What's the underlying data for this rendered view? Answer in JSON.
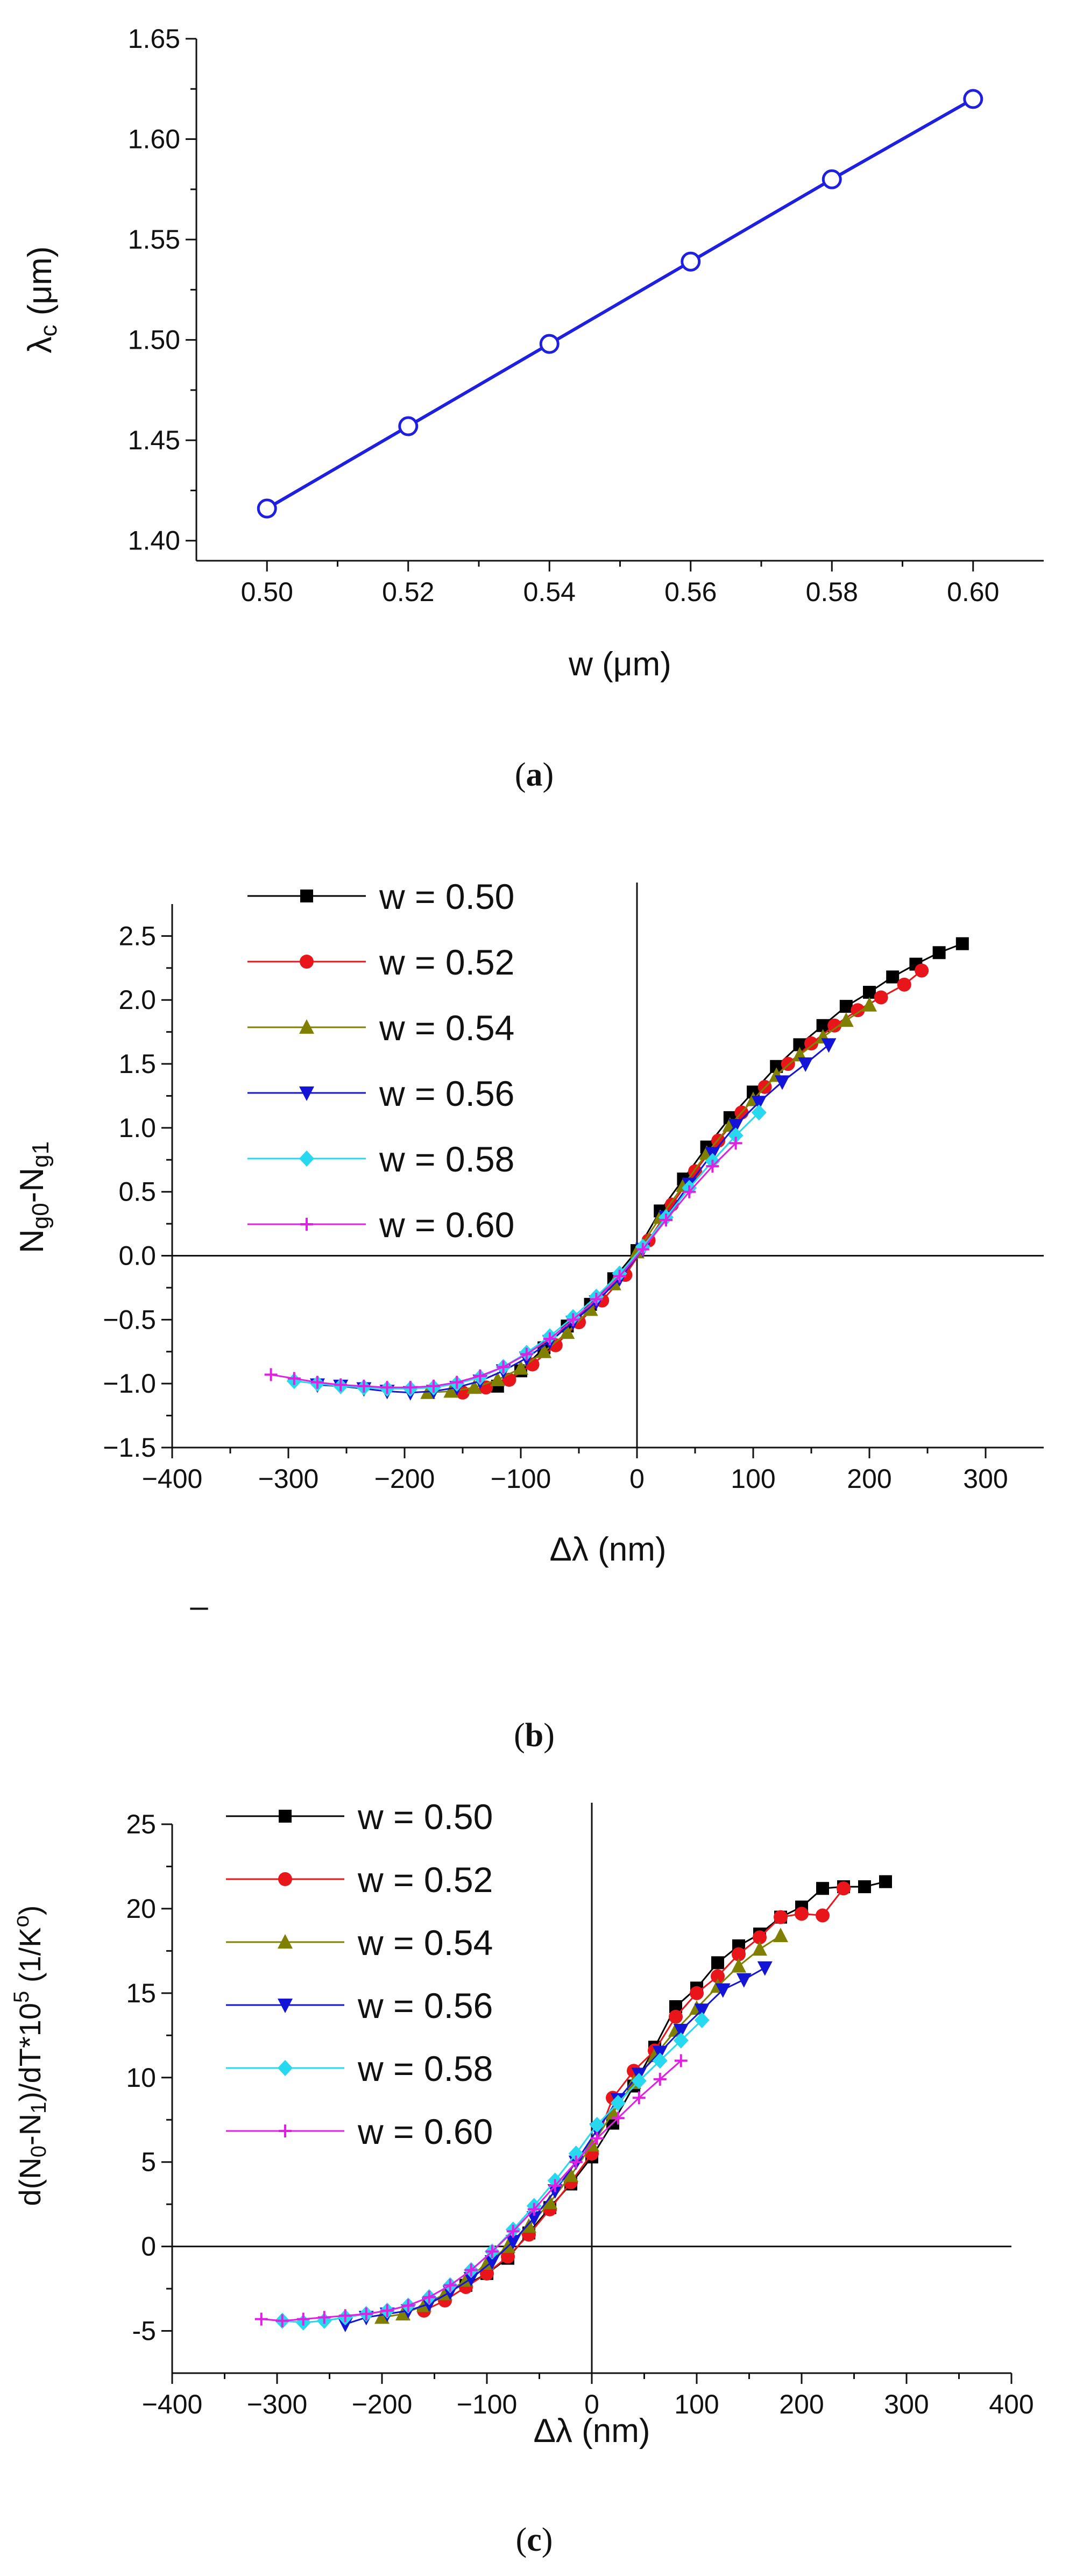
{
  "chart_data": [
    {
      "type": "line",
      "panel": "a",
      "caption": "(a)",
      "xlabel": "w (μm)",
      "ylabel": "λc (μm)",
      "xlim": [
        0.49,
        0.61
      ],
      "ylim": [
        1.39,
        1.65
      ],
      "xticks": [
        0.5,
        0.52,
        0.54,
        0.56,
        0.58,
        0.6
      ],
      "xtick_labels": [
        "0.50",
        "0.52",
        "0.54",
        "0.56",
        "0.58",
        "0.60"
      ],
      "yticks": [
        1.4,
        1.45,
        1.5,
        1.55,
        1.6,
        1.65
      ],
      "ytick_labels": [
        "1.40",
        "1.45",
        "1.50",
        "1.55",
        "1.60",
        "1.65"
      ],
      "series": [
        {
          "name": "lambda_c",
          "color": "#1f1fe0",
          "marker": "open-circle",
          "x": [
            0.5,
            0.52,
            0.54,
            0.56,
            0.58,
            0.6
          ],
          "y": [
            1.416,
            1.457,
            1.498,
            1.539,
            1.58,
            1.62
          ]
        }
      ]
    },
    {
      "type": "line",
      "panel": "b",
      "caption": "(b)",
      "xlabel": "Δλ (nm)",
      "ylabel": "Ng0-Ng1",
      "xlim": [
        -400,
        350
      ],
      "ylim": [
        -1.5,
        2.75
      ],
      "xticks": [
        -400,
        -300,
        -200,
        -100,
        0,
        100,
        200,
        300
      ],
      "xtick_labels": [
        "−400",
        "−300",
        "−200",
        "−100",
        "0",
        "100",
        "200",
        "300"
      ],
      "yticks": [
        -1.5,
        -1.0,
        -0.5,
        0.0,
        0.5,
        1.0,
        1.5,
        2.0,
        2.5
      ],
      "ytick_labels": [
        "−1.5",
        "−1.0",
        "−0.5",
        "0.0",
        "0.5",
        "1.0",
        "1.5",
        "2.0",
        "2.5"
      ],
      "extra_text": "–",
      "series": [
        {
          "name": "w = 0.50",
          "color": "#000000",
          "marker": "square",
          "x": [
            -120,
            -100,
            -80,
            -60,
            -40,
            -20,
            0,
            20,
            40,
            60,
            80,
            100,
            120,
            140,
            160,
            180,
            200,
            220,
            240,
            260,
            280
          ],
          "y": [
            -1.02,
            -0.9,
            -0.72,
            -0.55,
            -0.38,
            -0.18,
            0.04,
            0.35,
            0.6,
            0.85,
            1.08,
            1.28,
            1.48,
            1.65,
            1.8,
            1.95,
            2.06,
            2.18,
            2.28,
            2.37,
            2.44
          ]
        },
        {
          "name": "w = 0.52",
          "color": "#e8161b",
          "marker": "circle",
          "x": [
            -150,
            -130,
            -110,
            -90,
            -70,
            -50,
            -30,
            -10,
            10,
            30,
            50,
            70,
            90,
            110,
            130,
            150,
            170,
            190,
            210,
            230,
            245
          ],
          "y": [
            -1.07,
            -1.03,
            -0.97,
            -0.85,
            -0.7,
            -0.52,
            -0.35,
            -0.15,
            0.12,
            0.4,
            0.66,
            0.9,
            1.12,
            1.32,
            1.5,
            1.66,
            1.8,
            1.92,
            2.02,
            2.12,
            2.23
          ]
        },
        {
          "name": "w = 0.54",
          "color": "#808000",
          "marker": "triangle-up",
          "x": [
            -180,
            -160,
            -140,
            -120,
            -100,
            -80,
            -60,
            -40,
            -20,
            0,
            20,
            40,
            60,
            80,
            100,
            120,
            140,
            160,
            180,
            200
          ],
          "y": [
            -1.07,
            -1.06,
            -1.03,
            -0.97,
            -0.88,
            -0.75,
            -0.6,
            -0.42,
            -0.22,
            0.03,
            0.3,
            0.55,
            0.8,
            1.02,
            1.22,
            1.41,
            1.57,
            1.71,
            1.84,
            1.96
          ]
        },
        {
          "name": "w = 0.56",
          "color": "#1414d6",
          "marker": "triangle-down",
          "x": [
            -275,
            -255,
            -235,
            -215,
            -195,
            -175,
            -155,
            -135,
            -115,
            -95,
            -75,
            -55,
            -35,
            -15,
            5,
            25,
            45,
            65,
            85,
            105,
            125,
            145,
            165
          ],
          "y": [
            -1.01,
            -1.02,
            -1.04,
            -1.06,
            -1.07,
            -1.06,
            -1.03,
            -0.98,
            -0.9,
            -0.8,
            -0.67,
            -0.52,
            -0.36,
            -0.18,
            0.05,
            0.3,
            0.56,
            0.8,
            1.02,
            1.2,
            1.36,
            1.5,
            1.65
          ]
        },
        {
          "name": "w = 0.58",
          "color": "#27d8ef",
          "marker": "diamond",
          "x": [
            -295,
            -275,
            -255,
            -235,
            -215,
            -195,
            -175,
            -155,
            -135,
            -115,
            -95,
            -75,
            -55,
            -35,
            -15,
            5,
            25,
            45,
            65,
            85,
            105
          ],
          "y": [
            -0.98,
            -1.0,
            -1.02,
            -1.03,
            -1.04,
            -1.04,
            -1.03,
            -1.0,
            -0.95,
            -0.87,
            -0.76,
            -0.63,
            -0.48,
            -0.32,
            -0.14,
            0.07,
            0.3,
            0.53,
            0.74,
            0.94,
            1.12
          ]
        },
        {
          "name": "w = 0.60",
          "color": "#e020e0",
          "marker": "plus",
          "x": [
            -315,
            -295,
            -275,
            -255,
            -235,
            -215,
            -195,
            -175,
            -155,
            -135,
            -115,
            -95,
            -75,
            -55,
            -35,
            -15,
            5,
            25,
            45,
            65,
            85
          ],
          "y": [
            -0.93,
            -0.96,
            -0.99,
            -1.01,
            -1.02,
            -1.03,
            -1.03,
            -1.02,
            -0.99,
            -0.94,
            -0.87,
            -0.77,
            -0.65,
            -0.5,
            -0.34,
            -0.16,
            0.05,
            0.28,
            0.5,
            0.7,
            0.88
          ]
        }
      ]
    },
    {
      "type": "line",
      "panel": "c",
      "caption": "(c)",
      "xlabel": "Δλ (nm)",
      "ylabel": "d(N0-N1)/dT*10^5 (1/K^o)",
      "xlim": [
        -400,
        400
      ],
      "ylim": [
        -7.5,
        25
      ],
      "xticks": [
        -400,
        -300,
        -200,
        -100,
        0,
        100,
        200,
        300,
        400
      ],
      "xtick_labels": [
        "−400",
        "−300",
        "−200",
        "−100",
        "0",
        "100",
        "200",
        "300",
        "400"
      ],
      "yticks": [
        -5,
        0,
        5,
        10,
        15,
        20,
        25
      ],
      "ytick_labels": [
        "-5",
        "0",
        "5",
        "10",
        "15",
        "20",
        "25"
      ],
      "series": [
        {
          "name": "w = 0.50",
          "color": "#000000",
          "marker": "square",
          "x": [
            -120,
            -100,
            -80,
            -60,
            -40,
            -20,
            0,
            20,
            40,
            60,
            80,
            100,
            120,
            140,
            160,
            180,
            200,
            220,
            240,
            260,
            280
          ],
          "y": [
            -2.3,
            -1.6,
            -0.7,
            0.8,
            2.3,
            3.7,
            5.3,
            7.3,
            9.5,
            11.8,
            14.2,
            15.3,
            16.8,
            17.8,
            18.5,
            19.5,
            20.1,
            21.2,
            21.3,
            21.3,
            21.6
          ]
        },
        {
          "name": "w = 0.52",
          "color": "#e8161b",
          "marker": "circle",
          "x": [
            -160,
            -140,
            -120,
            -100,
            -80,
            -60,
            -40,
            -20,
            0,
            20,
            40,
            60,
            80,
            100,
            120,
            140,
            160,
            180,
            200,
            220,
            240
          ],
          "y": [
            -3.8,
            -3.2,
            -2.4,
            -1.6,
            -0.6,
            0.7,
            2.2,
            3.8,
            5.5,
            8.8,
            10.4,
            11.6,
            13.6,
            15.0,
            16.0,
            17.3,
            18.3,
            19.5,
            19.7,
            19.6,
            21.2
          ]
        },
        {
          "name": "w = 0.54",
          "color": "#808000",
          "marker": "triangle-up",
          "x": [
            -200,
            -180,
            -160,
            -140,
            -120,
            -100,
            -80,
            -60,
            -40,
            -20,
            0,
            20,
            40,
            60,
            80,
            100,
            120,
            140,
            160,
            180
          ],
          "y": [
            -4.2,
            -4.0,
            -3.5,
            -2.8,
            -2.0,
            -1.0,
            0.0,
            1.2,
            2.6,
            4.2,
            6.0,
            7.9,
            9.7,
            11.3,
            12.8,
            14.1,
            15.4,
            16.6,
            17.6,
            18.4
          ]
        },
        {
          "name": "w = 0.56",
          "color": "#1414d6",
          "marker": "triangle-down",
          "x": [
            -235,
            -215,
            -195,
            -175,
            -155,
            -135,
            -115,
            -95,
            -75,
            -55,
            -35,
            -15,
            5,
            25,
            45,
            65,
            85,
            105,
            125,
            145,
            165
          ],
          "y": [
            -4.6,
            -4.2,
            -4.0,
            -3.8,
            -3.4,
            -2.7,
            -1.9,
            -0.9,
            0.3,
            1.7,
            3.3,
            5.0,
            6.9,
            8.7,
            10.2,
            11.5,
            12.8,
            14.0,
            15.2,
            15.8,
            16.5
          ]
        },
        {
          "name": "w = 0.58",
          "color": "#27d8ef",
          "marker": "diamond",
          "x": [
            -295,
            -275,
            -255,
            -235,
            -215,
            -195,
            -175,
            -155,
            -135,
            -115,
            -95,
            -75,
            -55,
            -35,
            -15,
            5,
            25,
            45,
            65,
            85,
            105
          ],
          "y": [
            -4.4,
            -4.5,
            -4.4,
            -4.2,
            -4.0,
            -3.8,
            -3.5,
            -3.0,
            -2.3,
            -1.4,
            -0.3,
            1.0,
            2.4,
            3.9,
            5.5,
            7.2,
            8.5,
            9.8,
            11.0,
            12.2,
            13.4
          ]
        },
        {
          "name": "w = 0.60",
          "color": "#e020e0",
          "marker": "plus",
          "x": [
            -315,
            -295,
            -275,
            -255,
            -235,
            -215,
            -195,
            -175,
            -155,
            -135,
            -115,
            -95,
            -75,
            -55,
            -35,
            -15,
            5,
            25,
            45,
            65,
            85
          ],
          "y": [
            -4.3,
            -4.4,
            -4.3,
            -4.2,
            -4.1,
            -4.0,
            -3.8,
            -3.5,
            -3.0,
            -2.3,
            -1.4,
            -0.3,
            0.9,
            2.2,
            3.6,
            5.0,
            6.4,
            7.6,
            8.8,
            9.9,
            11.0
          ]
        }
      ]
    }
  ]
}
